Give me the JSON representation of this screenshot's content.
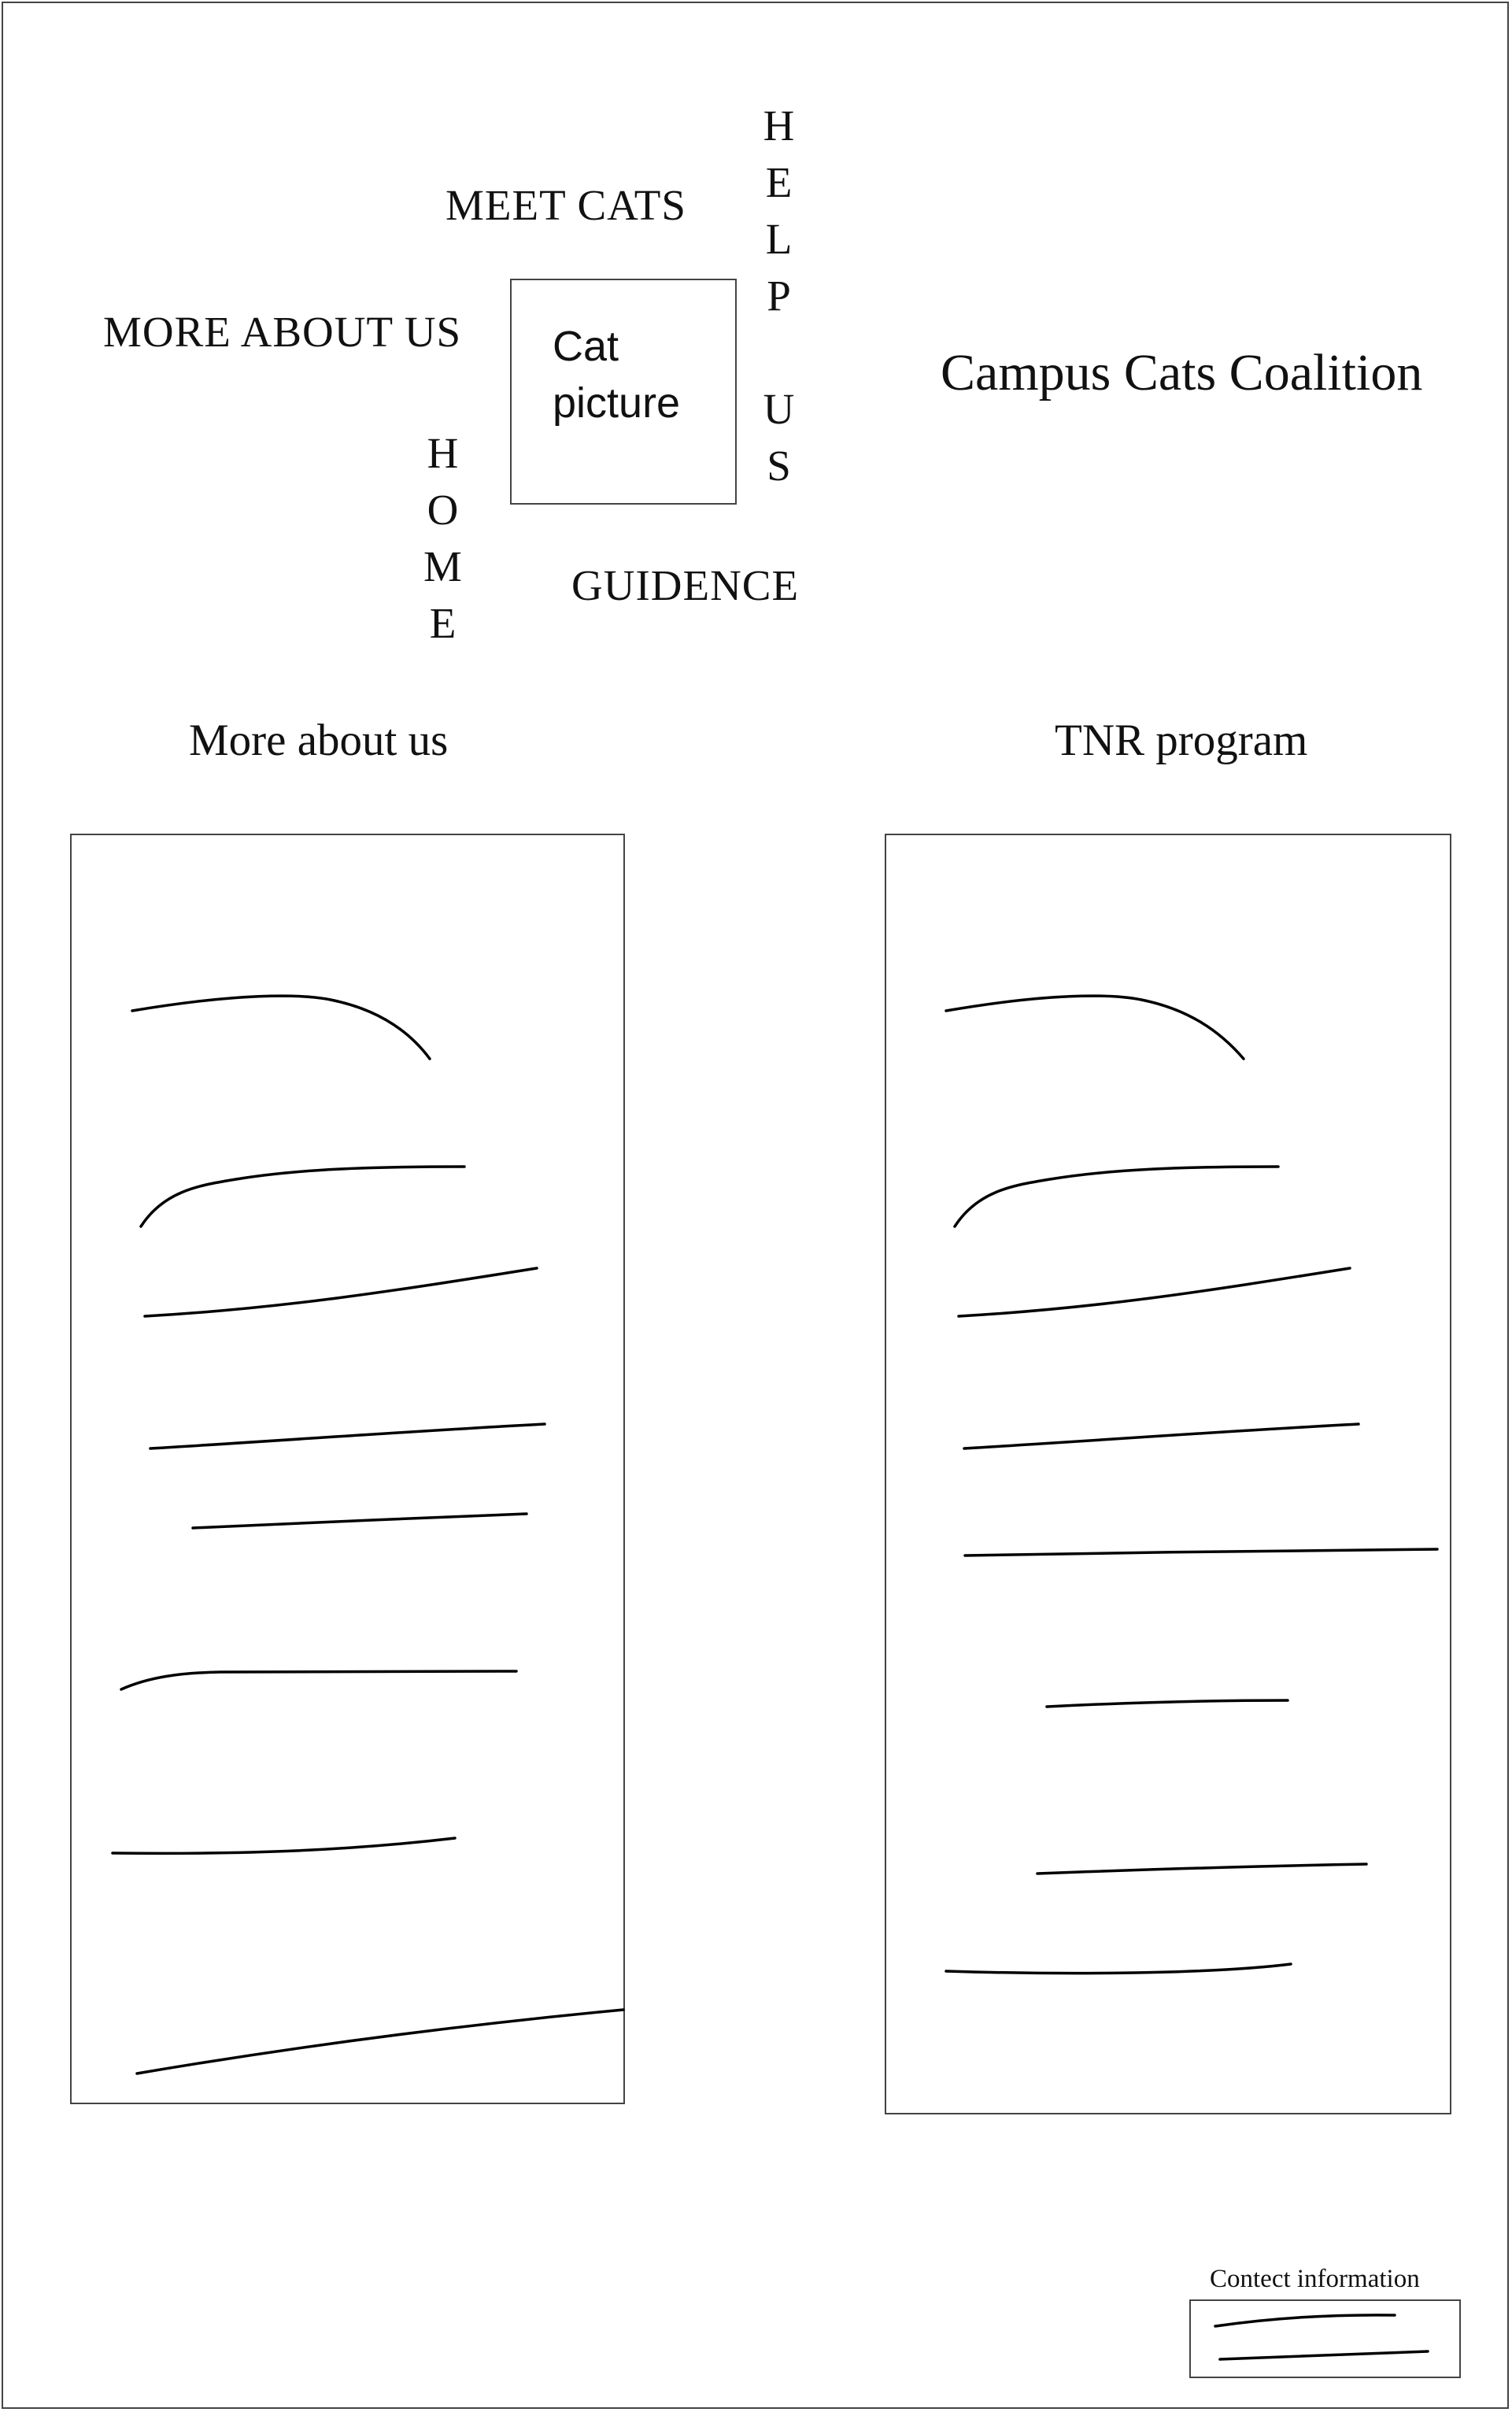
{
  "nav": {
    "meet_cats": "MEET CATS",
    "more_about_us": "MORE ABOUT US",
    "guidence": "GUIDENCE",
    "help_us": [
      "H",
      "E",
      "L",
      "P",
      "",
      "U",
      "S"
    ],
    "home": [
      "H",
      "O",
      "M",
      "E"
    ]
  },
  "hero": {
    "cat_picture_line1": "Cat",
    "cat_picture_line2": "picture"
  },
  "brand": {
    "title": "Campus Cats Coalition"
  },
  "sections": {
    "about_title": "More about us",
    "tnr_title": "TNR program"
  },
  "footer": {
    "contact_label": "Contect information"
  },
  "colors": {
    "background": "#ffffff",
    "ink": "#111111",
    "border": "#444444"
  }
}
